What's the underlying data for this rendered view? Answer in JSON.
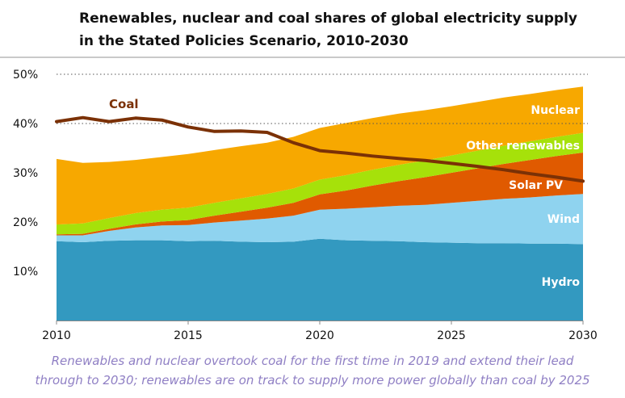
{
  "chart_data": {
    "type": "area",
    "title_line1": "Renewables, nuclear and coal shares of global electricity supply",
    "title_line2": "in the Stated Policies Scenario, 2010-2030",
    "caption_line1": "Renewables and nuclear overtook coal for the first time in 2019 and extend their lead",
    "caption_line2": "through to 2030; renewables are on track to supply more power globally than coal by 2025",
    "x": [
      2010,
      2011,
      2012,
      2013,
      2014,
      2015,
      2016,
      2017,
      2018,
      2019,
      2020,
      2021,
      2022,
      2023,
      2024,
      2025,
      2026,
      2027,
      2028,
      2029,
      2030
    ],
    "xticks": [
      2010,
      2015,
      2020,
      2025,
      2030
    ],
    "xtick_labels": [
      "2010",
      "2015",
      "2020",
      "2025",
      "2030"
    ],
    "yticks": [
      10,
      20,
      30,
      40,
      50
    ],
    "ytick_labels": [
      "10%",
      "20%",
      "30%",
      "40%",
      "50%"
    ],
    "ylim": [
      0,
      50
    ],
    "xlim": [
      2010,
      2030
    ],
    "stacked": true,
    "series": [
      {
        "name": "Hydro",
        "color": "#3399c0",
        "values": [
          16.1,
          15.9,
          16.2,
          16.3,
          16.3,
          16.1,
          16.2,
          16.0,
          15.9,
          16.0,
          16.6,
          16.3,
          16.2,
          16.1,
          15.9,
          15.8,
          15.7,
          15.7,
          15.6,
          15.6,
          15.5
        ]
      },
      {
        "name": "Wind",
        "color": "#8fd3ef",
        "values": [
          1.2,
          1.4,
          2.0,
          2.6,
          3.0,
          3.3,
          3.7,
          4.3,
          4.8,
          5.3,
          5.9,
          6.4,
          6.8,
          7.2,
          7.6,
          8.1,
          8.6,
          9.0,
          9.4,
          9.8,
          10.2
        ]
      },
      {
        "name": "Solar PV",
        "color": "#e05a00",
        "values": [
          0.2,
          0.3,
          0.4,
          0.6,
          0.8,
          1.0,
          1.4,
          1.8,
          2.2,
          2.6,
          3.1,
          3.7,
          4.4,
          5.0,
          5.6,
          6.1,
          6.6,
          7.1,
          7.6,
          8.0,
          8.4
        ]
      },
      {
        "name": "Other renewables",
        "color": "#a6e10a",
        "values": [
          2.0,
          2.1,
          2.2,
          2.3,
          2.4,
          2.5,
          2.6,
          2.7,
          2.8,
          2.9,
          3.0,
          3.1,
          3.2,
          3.3,
          3.4,
          3.5,
          3.6,
          3.7,
          3.8,
          3.9,
          4.0
        ]
      },
      {
        "name": "Nuclear",
        "color": "#f7a800",
        "values": [
          13.3,
          12.3,
          11.4,
          10.8,
          10.7,
          10.9,
          10.7,
          10.6,
          10.4,
          10.5,
          10.5,
          10.6,
          10.5,
          10.4,
          10.2,
          10.0,
          9.9,
          9.8,
          9.6,
          9.5,
          9.4
        ]
      },
      {
        "name": "Coal",
        "color": "#7b3106",
        "kind": "line",
        "values": [
          40.4,
          41.2,
          40.4,
          41.1,
          40.7,
          39.3,
          38.4,
          38.5,
          38.2,
          36.1,
          34.5,
          34.0,
          33.4,
          32.9,
          32.5,
          31.9,
          31.3,
          30.6,
          29.8,
          29.1,
          28.3
        ]
      }
    ],
    "labels": {
      "hydro": "Hydro",
      "wind": "Wind",
      "solar": "Solar PV",
      "other": "Other renewables",
      "nuclear": "Nuclear",
      "coal": "Coal"
    },
    "grid": "dotted at 40% and 50%"
  }
}
